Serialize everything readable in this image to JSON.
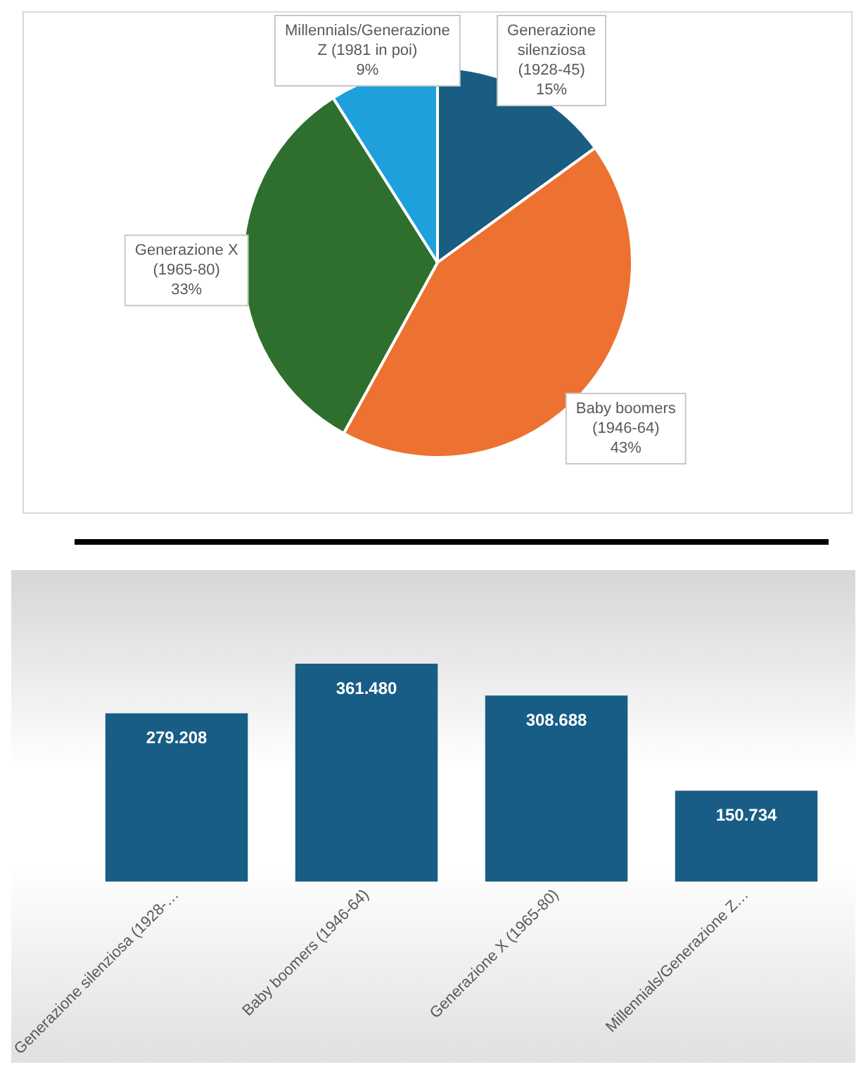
{
  "chart_data": [
    {
      "type": "pie",
      "categories": [
        "Generazione silenziosa (1928-45)",
        "Baby boomers (1946-64)",
        "Generazione X (1965-80)",
        "Millennials/Generazione Z (1981 in poi)"
      ],
      "values": [
        15,
        43,
        33,
        9
      ],
      "colors": [
        "#1a5d82",
        "#ed7130",
        "#2e6f2e",
        "#1ea0dc"
      ],
      "value_labels": [
        "15%",
        "43%",
        "33%",
        "9%"
      ],
      "legend": false
    },
    {
      "type": "bar",
      "categories": [
        "Generazione silenziosa (1928-…",
        "Baby boomers (1946-64)",
        "Generazione X (1965-80)",
        "Millennials/Generazione Z…"
      ],
      "values": [
        279208,
        361480,
        308688,
        150734
      ],
      "color": "#175d85",
      "value_labels": [
        "279.208",
        "361.480",
        "308.688",
        "150.734"
      ],
      "grid": false,
      "legend": false
    }
  ]
}
